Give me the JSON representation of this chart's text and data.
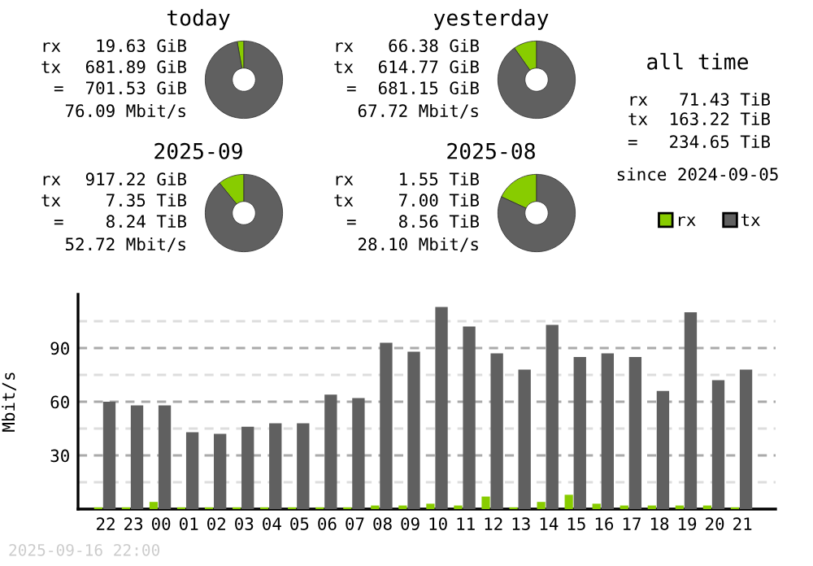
{
  "chart_data": [
    {
      "type": "donut",
      "title": "today",
      "categories": [
        null,
        null
      ],
      "values": [
        2.8,
        97.2
      ],
      "colors": [
        "#88cc00",
        "#606060"
      ],
      "annotations": [
        "rx 19.63 GiB",
        "tx 681.89 GiB",
        "= 701.53 GiB",
        "76.09 Mbit/s"
      ]
    },
    {
      "type": "donut",
      "title": "yesterday",
      "categories": [
        null,
        null
      ],
      "values": [
        9.75,
        90.25
      ],
      "colors": [
        "#88cc00",
        "#606060"
      ],
      "annotations": [
        "rx 66.38 GiB",
        "tx 614.77 GiB",
        "= 681.15 GiB",
        "67.72 Mbit/s"
      ]
    },
    {
      "type": "other",
      "title": "all time",
      "annotations": [
        "rx 71.43 TiB",
        "tx 163.22 TiB",
        "= 234.65 TiB",
        "since 2024-09-05"
      ]
    },
    {
      "type": "donut",
      "title": "2025-09",
      "categories": [
        null,
        null
      ],
      "values": [
        10.87,
        89.13
      ],
      "colors": [
        "#88cc00",
        "#606060"
      ],
      "annotations": [
        "rx 917.22 GiB",
        "tx 7.35 TiB",
        "= 8.24 TiB",
        "52.72 Mbit/s"
      ]
    },
    {
      "type": "donut",
      "title": "2025-08",
      "categories": [
        null,
        null
      ],
      "values": [
        18.11,
        81.89
      ],
      "colors": [
        "#88cc00",
        "#606060"
      ],
      "annotations": [
        "rx 1.55 TiB",
        "tx 7.00 TiB",
        "= 8.56 TiB",
        "28.10 Mbit/s"
      ]
    },
    {
      "type": "bar",
      "ylabel": "Mbit/s",
      "categories": [
        "22",
        "23",
        "00",
        "01",
        "02",
        "03",
        "04",
        "05",
        "06",
        "07",
        "08",
        "09",
        "10",
        "11",
        "12",
        "13",
        "14",
        "15",
        "16",
        "17",
        "18",
        "19",
        "20",
        "21"
      ],
      "series": [
        {
          "name": "rx",
          "color": "#88cc00",
          "values": [
            1,
            1,
            4,
            1,
            1,
            1,
            1,
            1,
            1,
            1,
            2,
            2,
            3,
            2,
            7,
            1,
            4,
            8,
            3,
            2,
            2,
            2,
            2,
            1
          ]
        },
        {
          "name": "tx",
          "color": "#606060",
          "values": [
            60,
            58,
            58,
            43,
            42,
            46,
            48,
            48,
            64,
            62,
            93,
            88,
            113,
            102,
            87,
            78,
            103,
            85,
            87,
            85,
            66,
            110,
            72,
            78
          ]
        }
      ],
      "ylim": [
        0,
        120
      ],
      "yticks": [
        {
          "value": 15,
          "label": null
        },
        30,
        {
          "value": 45,
          "label": null
        },
        60,
        {
          "value": 75,
          "label": null
        },
        90,
        {
          "value": 105,
          "label": null
        }
      ],
      "grid": "y",
      "legend": "top right",
      "annotations": [
        "2025-09-16 22:00"
      ]
    }
  ]
}
